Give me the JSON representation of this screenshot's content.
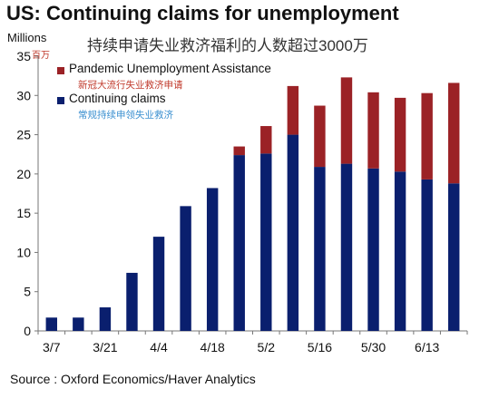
{
  "title": "US: Continuing claims for unemployment",
  "subtitle_cn": "持续申请失业救济福利的人数超过3000万",
  "unit_label": "Millions",
  "unit_label_cn": "百万",
  "source": "Source : Oxford Economics/Haver Analytics",
  "colors": {
    "pua": "#9b2226",
    "continuing": "#0a1f6e",
    "pua_cn_text": "#c0392b",
    "continuing_cn_text": "#3a8fd0"
  },
  "legend": [
    {
      "label": "Pandemic Unemployment Assistance",
      "label_cn": "新冠大流行失业救济申请"
    },
    {
      "label": "Continuing claims",
      "label_cn": "常规持续申领失业救济"
    }
  ],
  "chart_data": {
    "type": "bar",
    "stacked": true,
    "categories": [
      "3/7",
      "3/14",
      "3/21",
      "3/28",
      "4/4",
      "4/11",
      "4/18",
      "4/25",
      "5/2",
      "5/9",
      "5/16",
      "5/23",
      "5/30",
      "6/6",
      "6/13",
      "6/20"
    ],
    "x_tick_labels": [
      "3/7",
      "3/21",
      "4/4",
      "4/18",
      "5/2",
      "5/16",
      "5/30",
      "6/13"
    ],
    "series": [
      {
        "name": "Continuing claims",
        "values": [
          1.7,
          1.7,
          3.0,
          7.4,
          12.0,
          15.9,
          18.2,
          22.4,
          22.6,
          25.0,
          20.9,
          21.3,
          20.7,
          20.3,
          19.3,
          18.8
        ]
      },
      {
        "name": "Pandemic Unemployment Assistance",
        "values": [
          0,
          0,
          0,
          0,
          0,
          0,
          0,
          1.1,
          3.5,
          6.2,
          7.8,
          11.0,
          9.7,
          9.4,
          11.0,
          12.8
        ]
      }
    ],
    "ylim": [
      0,
      35
    ],
    "yticks": [
      0,
      5,
      10,
      15,
      20,
      25,
      30,
      35
    ],
    "grid": false,
    "legend_position": "top-left"
  }
}
